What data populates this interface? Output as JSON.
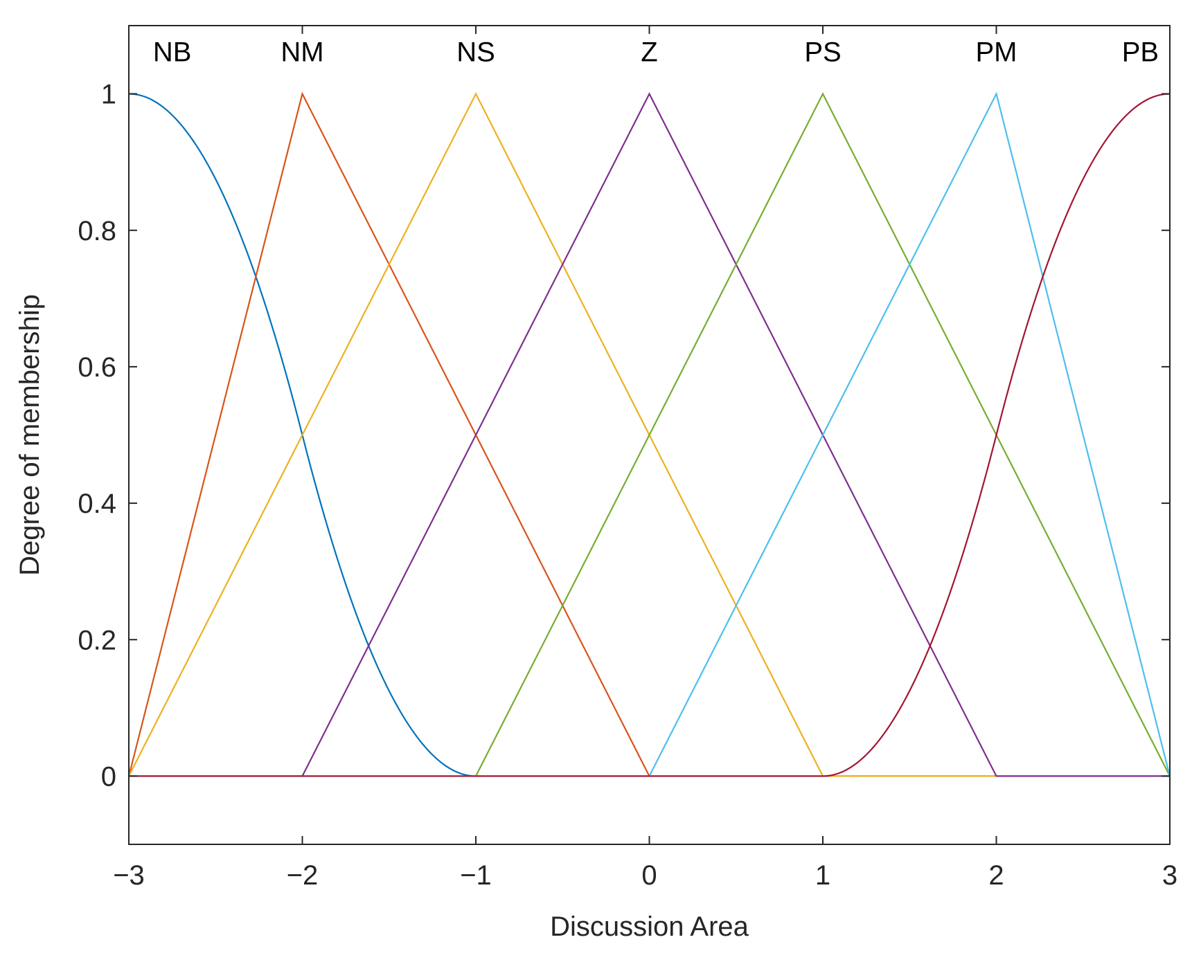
{
  "chart_data": {
    "type": "line",
    "title": "",
    "xlabel": "Discussion Area",
    "ylabel": "Degree of membership",
    "xlim": [
      -3,
      3
    ],
    "ylim": [
      -0.1,
      1.1
    ],
    "xticks": [
      -3,
      -2,
      -1,
      0,
      1,
      2,
      3
    ],
    "xtick_labels": [
      "−3",
      "−2",
      "−1",
      "0",
      "1",
      "2",
      "3"
    ],
    "yticks": [
      0,
      0.2,
      0.4,
      0.6,
      0.8,
      1
    ],
    "ytick_labels": [
      "0",
      "0.2",
      "0.4",
      "0.6",
      "0.8",
      "1"
    ],
    "grid": false,
    "series": [
      {
        "name": "NB",
        "shape": "zmf",
        "params": [
          -3,
          -1
        ],
        "color": "#0072BD",
        "label_x": -2.75
      },
      {
        "name": "NM",
        "shape": "trimf",
        "params": [
          -3,
          -2,
          0
        ],
        "color": "#D95319",
        "label_x": -2
      },
      {
        "name": "NS",
        "shape": "trimf",
        "params": [
          -3,
          -1,
          1
        ],
        "color": "#EDB120",
        "label_x": -1
      },
      {
        "name": "Z",
        "shape": "trimf",
        "params": [
          -2,
          0,
          2
        ],
        "color": "#7E2F8E",
        "label_x": 0
      },
      {
        "name": "PS",
        "shape": "trimf",
        "params": [
          -1,
          1,
          3
        ],
        "color": "#77AC30",
        "label_x": 1
      },
      {
        "name": "PM",
        "shape": "trimf",
        "params": [
          0,
          2,
          3
        ],
        "color": "#4DBEEE",
        "label_x": 2
      },
      {
        "name": "PB",
        "shape": "smf",
        "params": [
          1,
          3
        ],
        "color": "#A2142F",
        "label_x": 2.83
      }
    ]
  }
}
